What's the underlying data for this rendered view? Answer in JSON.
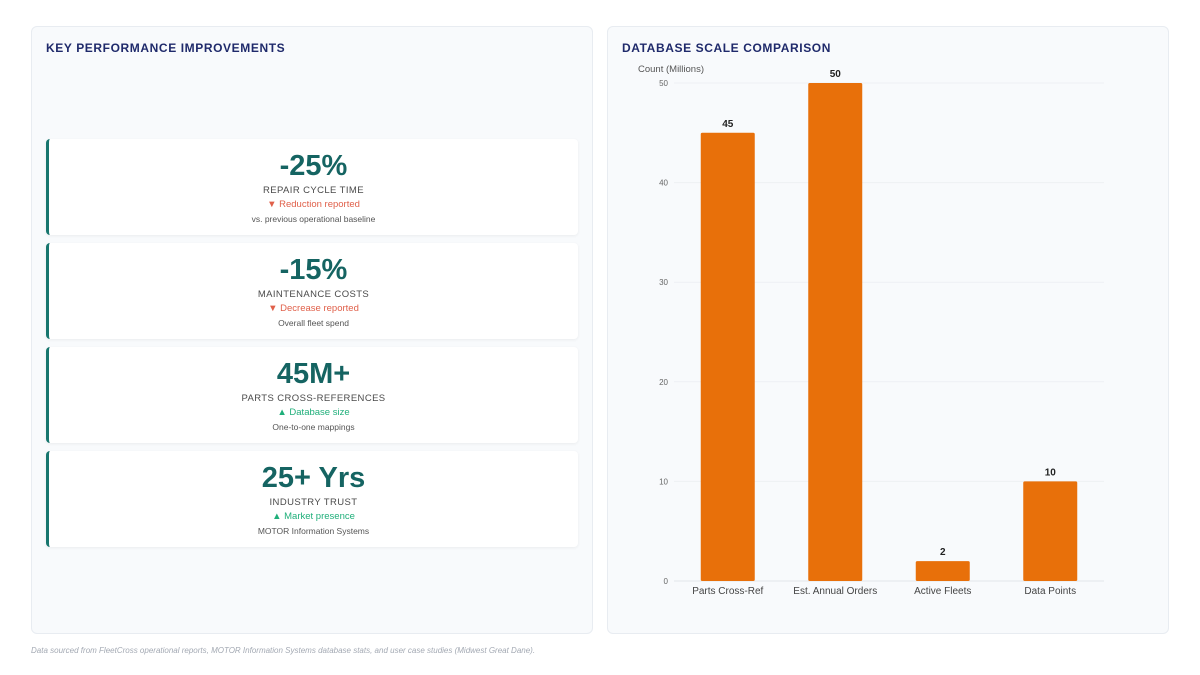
{
  "kpi_panel": {
    "title": "KEY PERFORMANCE IMPROVEMENTS",
    "cards": [
      {
        "value": "-25%",
        "label": "REPAIR CYCLE TIME",
        "trend": "▼ Reduction reported",
        "trend_dir": "down",
        "note": "vs. previous operational baseline"
      },
      {
        "value": "-15%",
        "label": "MAINTENANCE COSTS",
        "trend": "▼ Decrease reported",
        "trend_dir": "down",
        "note": "Overall fleet spend"
      },
      {
        "value": "45M+",
        "label": "PARTS CROSS-REFERENCES",
        "trend": "▲ Database size",
        "trend_dir": "up",
        "note": "One-to-one mappings"
      },
      {
        "value": "25+ Yrs",
        "label": "INDUSTRY TRUST",
        "trend": "▲ Market presence",
        "trend_dir": "up",
        "note": "MOTOR Information Systems"
      }
    ]
  },
  "chart_panel": {
    "title": "DATABASE SCALE COMPARISON"
  },
  "chart_data": {
    "type": "bar",
    "title": "DATABASE SCALE COMPARISON",
    "ylabel": "Count (Millions)",
    "xlabel": "",
    "categories": [
      "Parts Cross-Ref",
      "Est. Annual Orders",
      "Active Fleets",
      "Data Points"
    ],
    "values": [
      45,
      50,
      2,
      10
    ],
    "ylim": [
      0,
      50
    ],
    "yticks": [
      0,
      10,
      20,
      30,
      40,
      50
    ],
    "bar_color": "#e8700a",
    "grid": true,
    "legend": "none"
  },
  "footer": {
    "text": "Data sourced from FleetCross operational reports, MOTOR Information Systems database stats, and user case studies (Midwest Great Dane)."
  }
}
